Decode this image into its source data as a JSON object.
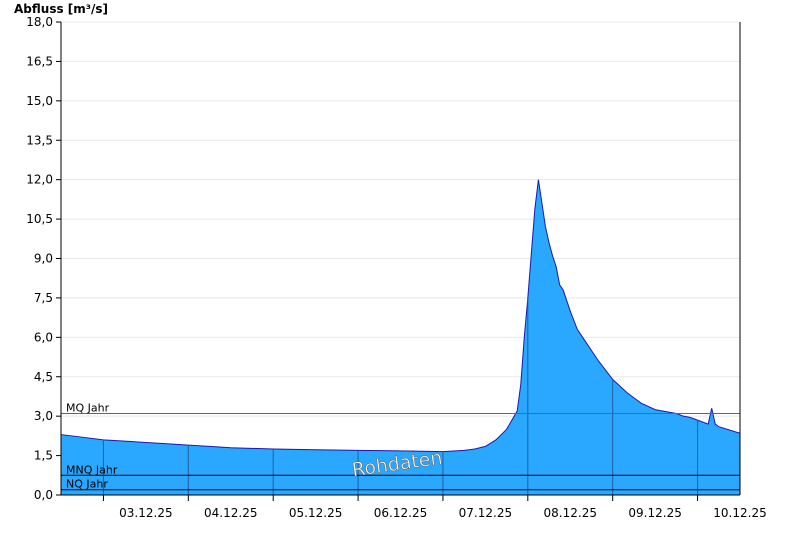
{
  "chart_data": {
    "type": "area",
    "ylabel": "Abfluss [m³/s]",
    "ylim": [
      0,
      18
    ],
    "yticks": [
      "0,0",
      "1,5",
      "3,0",
      "4,5",
      "6,0",
      "7,5",
      "9,0",
      "10,5",
      "12,0",
      "13,5",
      "15,0",
      "16,5",
      "18,0"
    ],
    "ytick_values": [
      0,
      1.5,
      3,
      4.5,
      6,
      7.5,
      9,
      10.5,
      12,
      13.5,
      15,
      16.5,
      18
    ],
    "xlim": [
      "2025-12-02 12:00",
      "2025-12-10 12:00"
    ],
    "xticks": [
      "03.12.25",
      "04.12.25",
      "05.12.25",
      "06.12.25",
      "07.12.25",
      "08.12.25",
      "09.12.25",
      "10.12.25"
    ],
    "xtick_values": [
      "2025-12-03 00:00",
      "2025-12-04 00:00",
      "2025-12-05 00:00",
      "2025-12-06 00:00",
      "2025-12-07 00:00",
      "2025-12-08 00:00",
      "2025-12-09 00:00",
      "2025-12-10 00:00"
    ],
    "grid": true,
    "series": [
      {
        "color": "#2aa7ff",
        "line_color": "#1a1aa8",
        "x": [
          "2025-12-02 12:00",
          "2025-12-02 18:00",
          "2025-12-03 00:00",
          "2025-12-03 06:00",
          "2025-12-03 12:00",
          "2025-12-03 18:00",
          "2025-12-04 00:00",
          "2025-12-04 06:00",
          "2025-12-04 12:00",
          "2025-12-05 00:00",
          "2025-12-05 12:00",
          "2025-12-06 00:00",
          "2025-12-06 12:00",
          "2025-12-07 00:00",
          "2025-12-07 06:00",
          "2025-12-07 09:00",
          "2025-12-07 12:00",
          "2025-12-07 15:00",
          "2025-12-07 18:00",
          "2025-12-07 21:00",
          "2025-12-07 22:00",
          "2025-12-07 23:00",
          "2025-12-08 00:00",
          "2025-12-08 01:00",
          "2025-12-08 02:00",
          "2025-12-08 03:00",
          "2025-12-08 04:00",
          "2025-12-08 05:00",
          "2025-12-08 06:00",
          "2025-12-08 07:00",
          "2025-12-08 08:00",
          "2025-12-08 09:00",
          "2025-12-08 10:00",
          "2025-12-08 12:00",
          "2025-12-08 14:00",
          "2025-12-08 16:00",
          "2025-12-08 18:00",
          "2025-12-08 20:00",
          "2025-12-09 00:00",
          "2025-12-09 04:00",
          "2025-12-09 08:00",
          "2025-12-09 12:00",
          "2025-12-09 18:00",
          "2025-12-09 20:00",
          "2025-12-09 22:00",
          "2025-12-10 00:00",
          "2025-12-10 03:00",
          "2025-12-10 04:00",
          "2025-12-10 05:00",
          "2025-12-10 06:00",
          "2025-12-10 12:00"
        ],
        "values": [
          2.3,
          2.2,
          2.1,
          2.05,
          2.0,
          1.95,
          1.9,
          1.85,
          1.8,
          1.75,
          1.72,
          1.7,
          1.68,
          1.65,
          1.7,
          1.75,
          1.85,
          2.1,
          2.5,
          3.2,
          4.2,
          6.0,
          7.5,
          9.2,
          10.9,
          12.0,
          11.1,
          10.2,
          9.6,
          9.1,
          8.7,
          8.0,
          7.8,
          7.0,
          6.3,
          5.9,
          5.5,
          5.1,
          4.4,
          3.9,
          3.5,
          3.25,
          3.1,
          3.0,
          2.95,
          2.85,
          2.7,
          3.3,
          2.7,
          2.6,
          2.35
        ]
      }
    ],
    "reference_lines": [
      {
        "label": "MQ Jahr",
        "value": 3.1,
        "color": "#2e8b2e"
      },
      {
        "label": "MNQ Jahr",
        "value": 0.75,
        "color": "#000000"
      },
      {
        "label": "NQ Jahr",
        "value": 0.2,
        "color": "#000000"
      }
    ],
    "watermark": "Rohdaten"
  }
}
